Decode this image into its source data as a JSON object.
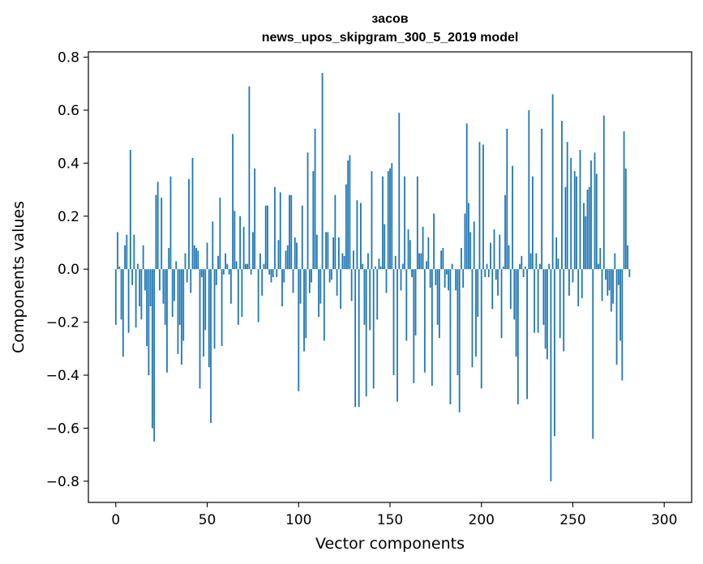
{
  "chart_data": {
    "type": "bar",
    "title_line1": "засов",
    "title_line2": "news_upos_skipgram_300_5_2019 model",
    "xlabel": "Vector components",
    "ylabel": "Components values",
    "xlim": [
      -15,
      315
    ],
    "ylim": [
      -0.88,
      0.82
    ],
    "xticks": [
      0,
      50,
      100,
      150,
      200,
      250,
      300
    ],
    "yticks": [
      0.8,
      0.6,
      0.4,
      0.2,
      0.0,
      -0.2,
      -0.4,
      -0.6,
      -0.8
    ],
    "ytick_labels": [
      "0.8",
      "0.6",
      "0.4",
      "0.2",
      "0.0",
      "−0.2",
      "−0.4",
      "−0.6",
      "−0.8"
    ],
    "bar_color": "#1f77b4",
    "grid": false,
    "values": [
      -0.21,
      0.14,
      0.01,
      -0.19,
      -0.33,
      0.09,
      0.13,
      -0.24,
      0.45,
      -0.06,
      0.13,
      -0.22,
      0.02,
      -0.14,
      -0.19,
      0.09,
      -0.08,
      -0.29,
      -0.4,
      -0.14,
      -0.6,
      -0.65,
      0.28,
      0.33,
      -0.08,
      0.27,
      -0.13,
      -0.21,
      -0.39,
      0.08,
      0.35,
      -0.18,
      -0.12,
      0.03,
      -0.32,
      -0.21,
      -0.36,
      -0.27,
      0.06,
      -0.05,
      0.34,
      -0.09,
      0.42,
      0.09,
      0.08,
      0.07,
      -0.45,
      -0.03,
      -0.33,
      -0.23,
      0.1,
      -0.37,
      -0.58,
      0.18,
      -0.3,
      -0.06,
      0.05,
      0.27,
      -0.29,
      -0.02,
      0.06,
      0.02,
      -0.02,
      -0.13,
      0.51,
      0.22,
      0.03,
      -0.21,
      0.2,
      -0.18,
      0.16,
      0.02,
      0.02,
      0.69,
      -0.02,
      0.14,
      0.38,
      0.0,
      -0.2,
      0.06,
      -0.1,
      0.02,
      0.24,
      0.24,
      -0.02,
      -0.05,
      -0.03,
      0.31,
      -0.03,
      0.11,
      0.29,
      -0.14,
      -0.05,
      0.07,
      0.09,
      0.28,
      0.28,
      -0.09,
      0.12,
      0.1,
      -0.46,
      -0.13,
      0.24,
      -0.31,
      -0.26,
      0.44,
      -0.09,
      -0.05,
      0.37,
      0.53,
      0.13,
      -0.18,
      -0.13,
      0.74,
      -0.27,
      0.14,
      0.14,
      -0.05,
      -0.04,
      0.12,
      0.28,
      -0.1,
      0.12,
      -0.15,
      0.06,
      0.05,
      0.32,
      0.41,
      0.43,
      -0.12,
      0.07,
      -0.52,
      0.26,
      -0.52,
      0.25,
      0.02,
      -0.21,
      -0.48,
      0.06,
      -0.23,
      0.37,
      -0.45,
      0.01,
      -0.19,
      0.04,
      0.01,
      0.35,
      0.17,
      -0.09,
      0.37,
      0.38,
      0.4,
      -0.4,
      0.05,
      -0.5,
      0.59,
      -0.08,
      0.02,
      0.35,
      -0.27,
      0.15,
      0.11,
      -0.03,
      -0.43,
      -0.25,
      0.35,
      0.06,
      0.06,
      0.16,
      -0.39,
      0.03,
      0.12,
      -0.07,
      -0.44,
      0.21,
      -0.06,
      -0.21,
      -0.26,
      0.07,
      0.08,
      -0.07,
      -0.02,
      -0.08,
      -0.51,
      0.02,
      0.0,
      -0.08,
      -0.4,
      -0.54,
      0.08,
      -0.07,
      0.21,
      0.55,
      0.25,
      0.14,
      -0.37,
      0.18,
      -0.33,
      -0.18,
      0.48,
      -0.45,
      0.47,
      -0.03,
      0.02,
      -0.03,
      0.1,
      -0.15,
      0.15,
      -0.04,
      -0.1,
      0.13,
      -0.26,
      0.01,
      0.28,
      0.53,
      0.09,
      -0.15,
      0.39,
      -0.19,
      -0.33,
      -0.51,
      0.02,
      0.05,
      -0.03,
      0.01,
      -0.49,
      0.6,
      0.06,
      0.35,
      -0.24,
      0.06,
      -0.24,
      0.02,
      0.53,
      -0.21,
      -0.3,
      -0.34,
      0.02,
      -0.8,
      0.66,
      -0.63,
      0.12,
      0.04,
      -0.26,
      0.56,
      -0.31,
      0.31,
      0.48,
      -0.1,
      0.42,
      -0.05,
      0.37,
      0.35,
      -0.14,
      0.45,
      -0.11,
      0.25,
      0.2,
      0.3,
      0.31,
      0.41,
      -0.64,
      0.44,
      0.36,
      0.02,
      0.08,
      -0.12,
      0.58,
      -0.04,
      -0.1,
      -0.08,
      -0.16,
      -0.13,
      0.06,
      -0.36,
      -0.06,
      -0.27,
      -0.42,
      0.52,
      0.38,
      0.09,
      -0.03
    ]
  }
}
